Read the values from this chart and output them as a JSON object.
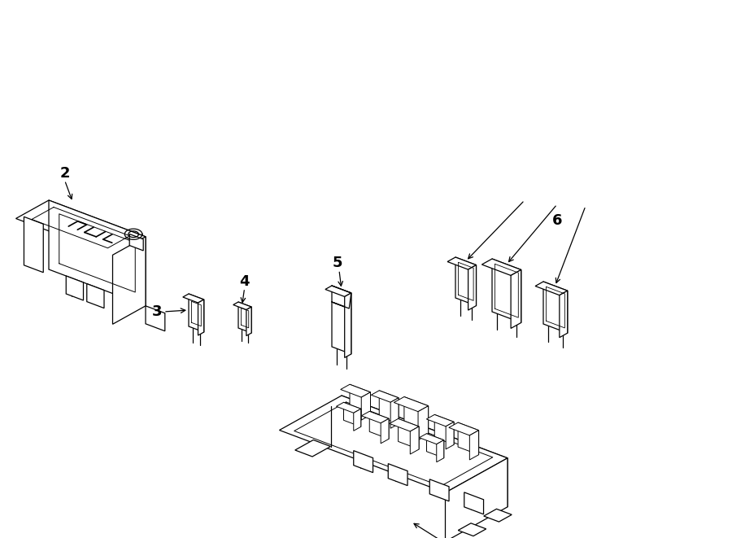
{
  "bg_color": "#ffffff",
  "line_color": "#000000",
  "figsize": [
    9.0,
    6.61
  ],
  "dpi": 100,
  "lw": 0.9
}
